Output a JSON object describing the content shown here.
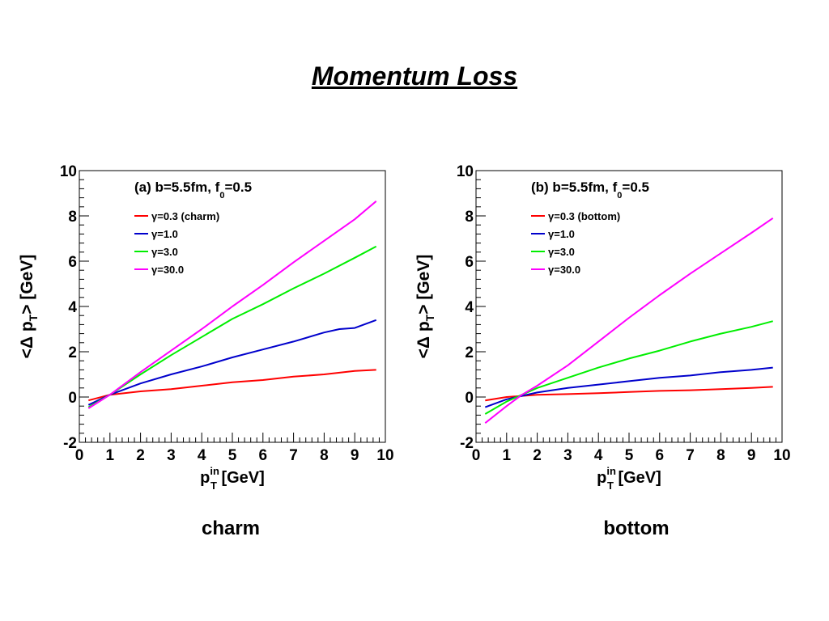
{
  "page": {
    "title": "Momentum Loss",
    "captions": [
      "charm",
      "bottom"
    ]
  },
  "chart_data": [
    {
      "type": "line",
      "annotation": "(a) b=5.5fm, f",
      "annotation_sub": "0",
      "annotation_tail": "=0.5",
      "xlabel_main": "p",
      "xlabel_sub": "T",
      "xlabel_sup": "in",
      "xlabel_tail": " [GeV]",
      "ylabel": "<Δ p",
      "ylabel_sub": "T",
      "ylabel_tail": "> [GeV]",
      "xlim": [
        0,
        10
      ],
      "ylim": [
        -2,
        10
      ],
      "xticks": [
        "0",
        "1",
        "2",
        "3",
        "4",
        "5",
        "6",
        "7",
        "8",
        "9",
        "10"
      ],
      "yticks": [
        "-2",
        "0",
        "2",
        "4",
        "6",
        "8",
        "10"
      ],
      "legend_position": "top-left",
      "series": [
        {
          "name": "γ=0.3 (charm)",
          "color": "#ff0000",
          "x": [
            0.3,
            1,
            2,
            3,
            4,
            5,
            6,
            7,
            8,
            9,
            9.7
          ],
          "y": [
            -0.15,
            0.1,
            0.25,
            0.35,
            0.5,
            0.65,
            0.75,
            0.9,
            1.0,
            1.15,
            1.2
          ]
        },
        {
          "name": "γ=1.0",
          "color": "#0000cc",
          "x": [
            0.3,
            1,
            2,
            3,
            4,
            5,
            6,
            7,
            8,
            8.5,
            9,
            9.7
          ],
          "y": [
            -0.35,
            0.1,
            0.6,
            1.0,
            1.35,
            1.75,
            2.1,
            2.45,
            2.85,
            3.0,
            3.05,
            3.4
          ]
        },
        {
          "name": "γ=3.0",
          "color": "#00ee00",
          "x": [
            0.3,
            1,
            2,
            3,
            4,
            5,
            6,
            7,
            8,
            9,
            9.7
          ],
          "y": [
            -0.45,
            0.1,
            1.0,
            1.85,
            2.65,
            3.45,
            4.1,
            4.8,
            5.45,
            6.15,
            6.65
          ]
        },
        {
          "name": "γ=30.0",
          "color": "#ff00ff",
          "x": [
            0.3,
            1,
            2,
            3,
            4,
            5,
            6,
            7,
            8,
            9,
            9.7
          ],
          "y": [
            -0.5,
            0.1,
            1.1,
            2.05,
            3.0,
            4.0,
            4.95,
            5.95,
            6.9,
            7.85,
            8.65
          ]
        }
      ]
    },
    {
      "type": "line",
      "annotation": "(b) b=5.5fm, f",
      "annotation_sub": "0",
      "annotation_tail": "=0.5",
      "xlabel_main": "p",
      "xlabel_sub": "T",
      "xlabel_sup": "in",
      "xlabel_tail": " [GeV]",
      "ylabel": "<Δ p",
      "ylabel_sub": "T",
      "ylabel_tail": "> [GeV]",
      "xlim": [
        0,
        10
      ],
      "ylim": [
        -2,
        10
      ],
      "xticks": [
        "0",
        "1",
        "2",
        "3",
        "4",
        "5",
        "6",
        "7",
        "8",
        "9",
        "10"
      ],
      "yticks": [
        "-2",
        "0",
        "2",
        "4",
        "6",
        "8",
        "10"
      ],
      "legend_position": "top-left",
      "series": [
        {
          "name": "γ=0.3 (bottom)",
          "color": "#ff0000",
          "x": [
            0.3,
            1,
            1.5,
            2,
            3,
            4,
            5,
            6,
            7,
            8,
            9,
            9.7
          ],
          "y": [
            -0.15,
            0.0,
            0.05,
            0.1,
            0.13,
            0.17,
            0.22,
            0.27,
            0.3,
            0.35,
            0.4,
            0.45
          ]
        },
        {
          "name": "γ=1.0",
          "color": "#0000cc",
          "x": [
            0.3,
            1,
            1.5,
            2,
            3,
            4,
            5,
            6,
            7,
            8,
            9,
            9.7
          ],
          "y": [
            -0.45,
            -0.1,
            0.05,
            0.2,
            0.4,
            0.55,
            0.7,
            0.85,
            0.95,
            1.1,
            1.2,
            1.3
          ]
        },
        {
          "name": "γ=3.0",
          "color": "#00ee00",
          "x": [
            0.3,
            1,
            1.5,
            2,
            3,
            4,
            5,
            6,
            7,
            8,
            9,
            9.7
          ],
          "y": [
            -0.75,
            -0.2,
            0.1,
            0.4,
            0.85,
            1.3,
            1.7,
            2.05,
            2.45,
            2.8,
            3.1,
            3.35
          ]
        },
        {
          "name": "γ=30.0",
          "color": "#ff00ff",
          "x": [
            0.3,
            1,
            1.5,
            2,
            3,
            4,
            5,
            6,
            7,
            8,
            9,
            9.7
          ],
          "y": [
            -1.15,
            -0.4,
            0.1,
            0.5,
            1.4,
            2.45,
            3.5,
            4.5,
            5.45,
            6.35,
            7.25,
            7.9
          ]
        }
      ]
    }
  ]
}
